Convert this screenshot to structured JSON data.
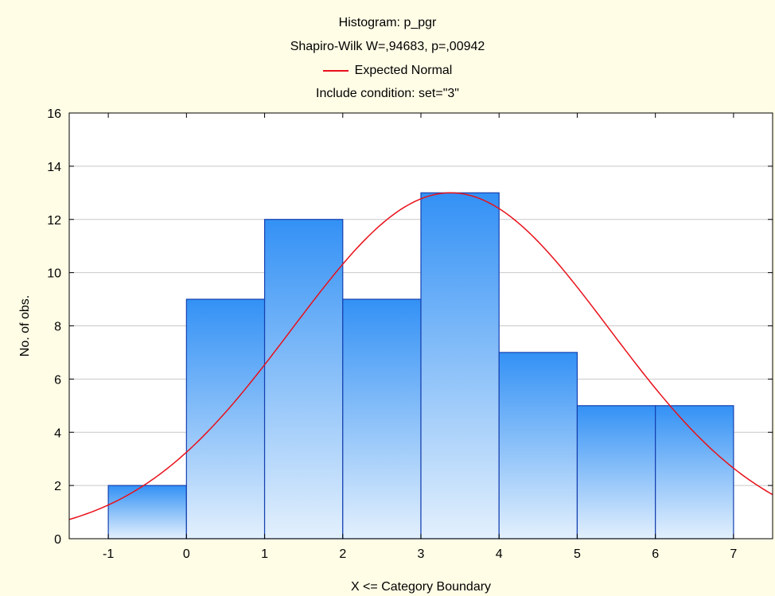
{
  "chart_data": {
    "type": "bar",
    "title": "Histogram: p_pgr",
    "subtitle": "Shapiro-Wilk W=,94683, p=,00942",
    "condition": "Include condition: set=\"3\"",
    "xlabel": "X <= Category Boundary",
    "ylabel": "No. of obs.",
    "xlim": [
      -1.5,
      7.5
    ],
    "ylim": [
      0,
      16
    ],
    "x_ticks": [
      -1,
      0,
      1,
      2,
      3,
      4,
      5,
      6,
      7
    ],
    "y_ticks": [
      0,
      2,
      4,
      6,
      8,
      10,
      12,
      14,
      16
    ],
    "grid": true,
    "legend_position": "top-center",
    "bins": [
      {
        "left": -1,
        "right": 0,
        "count": 2
      },
      {
        "left": 0,
        "right": 1,
        "count": 9
      },
      {
        "left": 1,
        "right": 2,
        "count": 12
      },
      {
        "left": 2,
        "right": 3,
        "count": 9
      },
      {
        "left": 3,
        "right": 4,
        "count": 13
      },
      {
        "left": 4,
        "right": 5,
        "count": 7
      },
      {
        "left": 5,
        "right": 6,
        "count": 5
      },
      {
        "left": 6,
        "right": 7,
        "count": 5
      }
    ],
    "series": [
      {
        "name": "Expected Normal",
        "type": "line",
        "mean": 3.38,
        "sd": 2.03,
        "peak": 13.0,
        "color": "#e8101a"
      }
    ],
    "colors": {
      "bar_top": "#3391f5",
      "bar_bottom": "#e3f0fd",
      "bar_edge": "#1540b0",
      "curve": "#e8101a",
      "background": "#fffde6",
      "plot_background": "#ffffff",
      "grid": "#c8c8c8"
    }
  }
}
